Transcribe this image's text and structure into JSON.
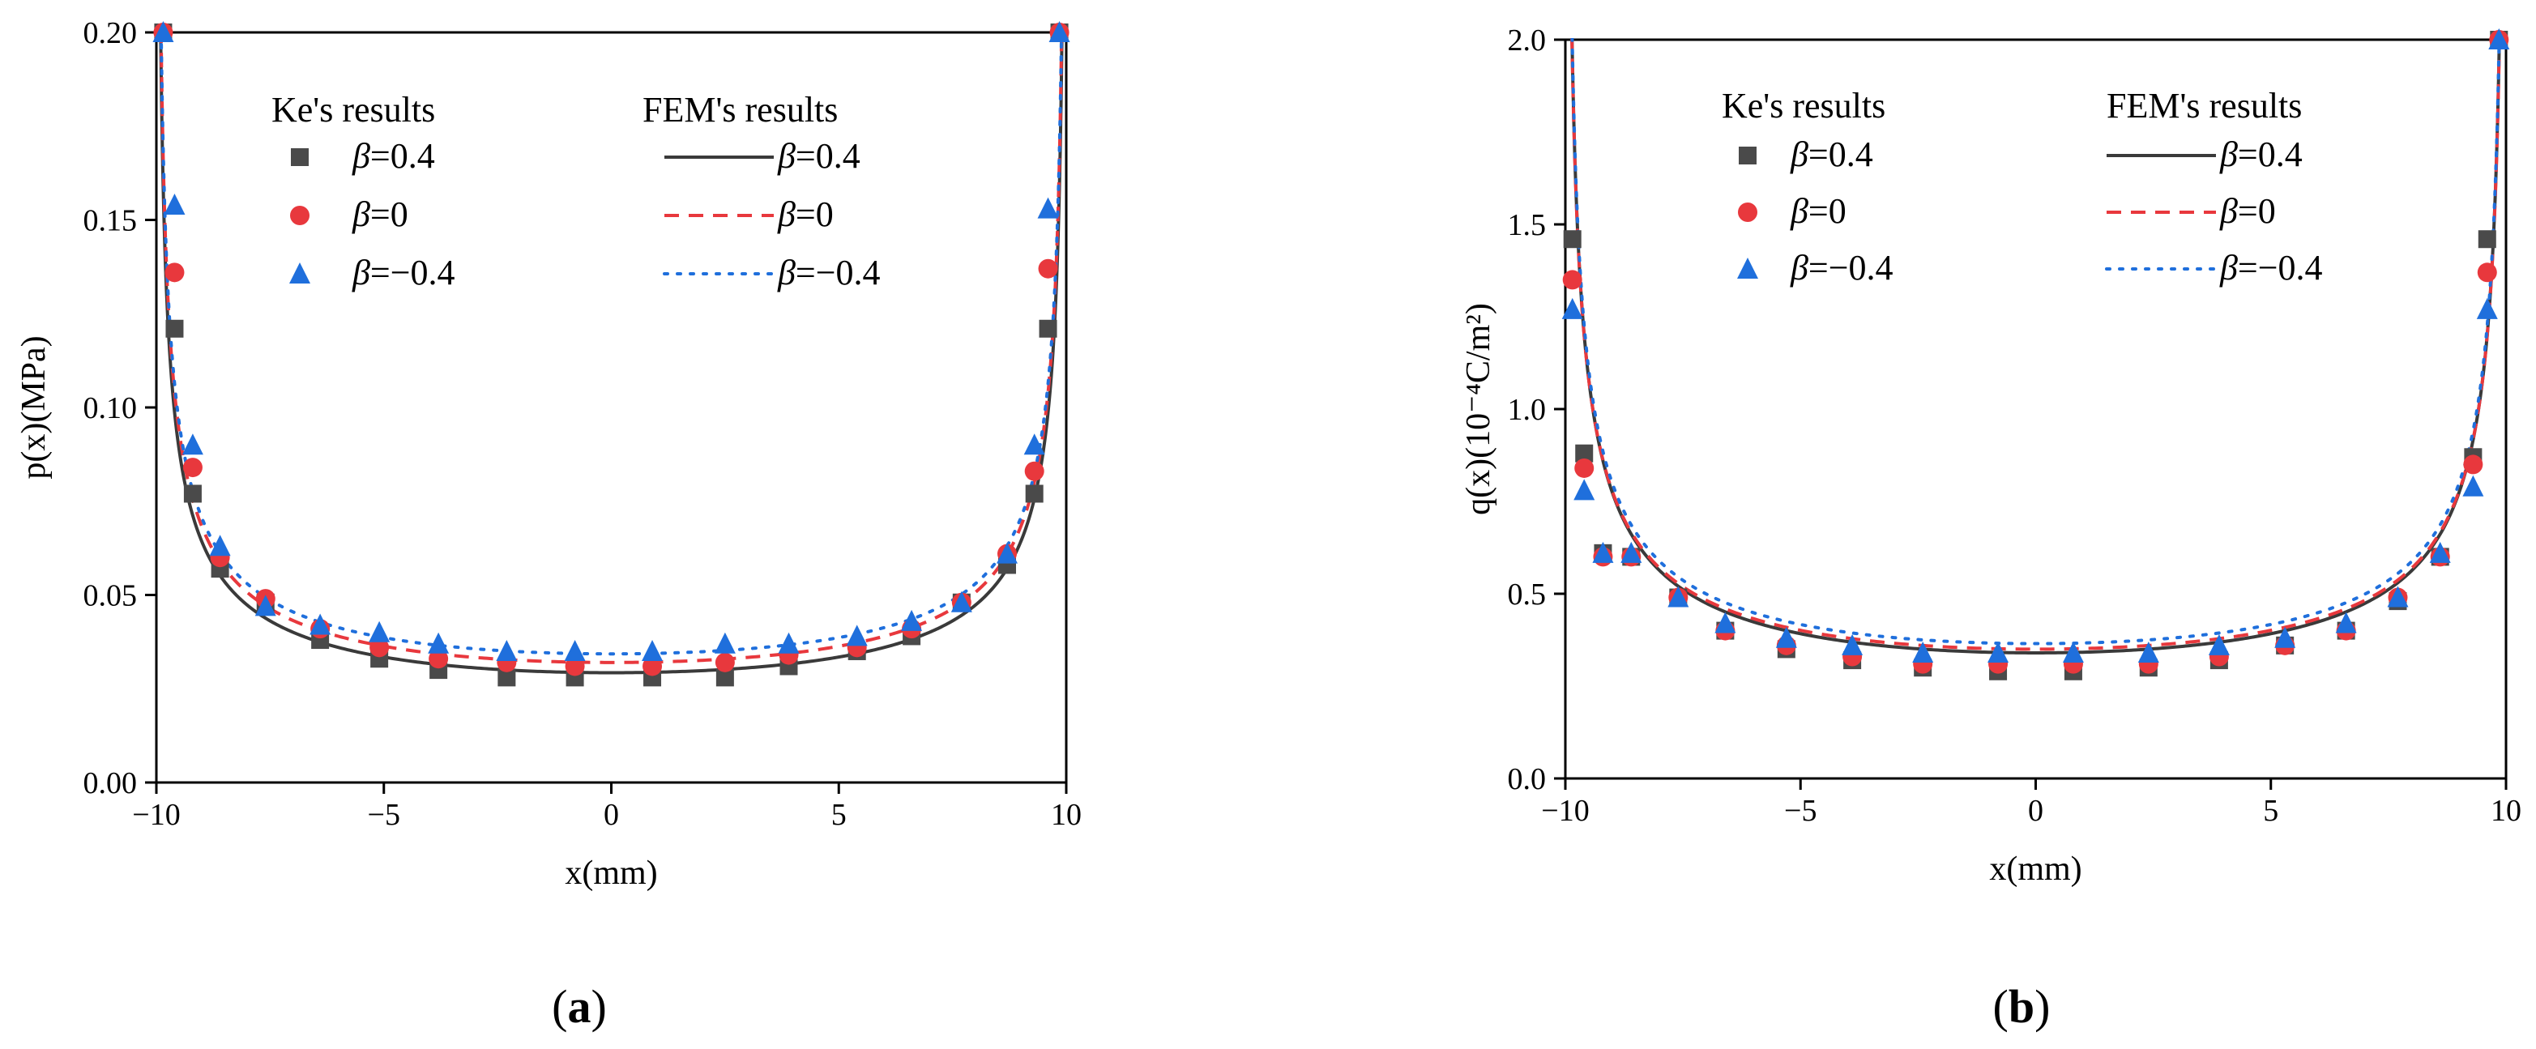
{
  "chart_data": [
    {
      "type": "scatter+line",
      "panel_label": "a",
      "xlabel": "x(mm)",
      "ylabel": "p(x)(MPa)",
      "xlim": [
        -10,
        10
      ],
      "ylim": [
        0,
        0.2
      ],
      "xticks": [
        -10,
        -5,
        0,
        5,
        10
      ],
      "xtick_labels": [
        "−10",
        "−5",
        "0",
        "5",
        "10"
      ],
      "yticks": [
        0,
        0.05,
        0.1,
        0.15,
        0.2
      ],
      "ytick_labels": [
        "0.00",
        "0.05",
        "0.10",
        "0.15",
        "0.20"
      ],
      "legend": {
        "markers_title": "Ke's results",
        "lines_title": "FEM's results",
        "entries": [
          {
            "symbol": "β",
            "text": "=0.4"
          },
          {
            "symbol": "β",
            "text": "=0"
          },
          {
            "symbol": "β",
            "text": "=−0.4"
          }
        ]
      },
      "curve_model": {
        "form": "base + amp / sqrt(1 - (x/10)^2)"
      },
      "series": [
        {
          "name": "β=0.4",
          "marker_color": "#4a4a4a",
          "marker": "square",
          "line_style": "solid",
          "line_color": "#3a3a3a",
          "line": {
            "base": 0.00227,
            "amp": 0.027
          },
          "points": {
            "x": [
              -9.85,
              -9.6,
              -9.2,
              -8.6,
              -7.6,
              -6.4,
              -5.1,
              -3.8,
              -2.3,
              -0.8,
              0.9,
              2.5,
              3.9,
              5.4,
              6.6,
              7.7,
              8.7,
              9.3,
              9.6,
              9.85
            ],
            "y": [
              0.2,
              0.121,
              0.077,
              0.057,
              0.048,
              0.038,
              0.033,
              0.03,
              0.028,
              0.028,
              0.028,
              0.028,
              0.031,
              0.035,
              0.039,
              0.048,
              0.058,
              0.077,
              0.121,
              0.2
            ]
          }
        },
        {
          "name": "β=0",
          "marker_color": "#e8383d",
          "marker": "circle",
          "line_style": "dashed",
          "line_color": "#e8383d",
          "line": {
            "base": 0.004,
            "amp": 0.028
          },
          "points": {
            "x": [
              -9.85,
              -9.6,
              -9.2,
              -8.6,
              -7.6,
              -6.4,
              -5.1,
              -3.8,
              -2.3,
              -0.8,
              0.9,
              2.5,
              3.9,
              5.4,
              6.6,
              7.7,
              8.7,
              9.3,
              9.6,
              9.85
            ],
            "y": [
              0.2,
              0.136,
              0.084,
              0.06,
              0.049,
              0.041,
              0.036,
              0.033,
              0.032,
              0.031,
              0.031,
              0.032,
              0.034,
              0.036,
              0.041,
              0.048,
              0.061,
              0.083,
              0.137,
              0.2
            ]
          }
        },
        {
          "name": "β=−0.4",
          "marker_color": "#1f6fdc",
          "marker": "triangle",
          "line_style": "dotted",
          "line_color": "#1f6fdc",
          "line": {
            "base": 0.0063,
            "amp": 0.028
          },
          "points": {
            "x": [
              -9.85,
              -9.6,
              -9.2,
              -8.6,
              -7.6,
              -6.4,
              -5.1,
              -3.8,
              -2.3,
              -0.8,
              0.9,
              2.5,
              3.9,
              5.4,
              6.6,
              7.7,
              8.7,
              9.3,
              9.6,
              9.85
            ],
            "y": [
              0.2,
              0.154,
              0.09,
              0.063,
              0.047,
              0.042,
              0.04,
              0.037,
              0.035,
              0.035,
              0.035,
              0.037,
              0.037,
              0.039,
              0.043,
              0.048,
              0.061,
              0.09,
              0.153,
              0.2
            ]
          }
        }
      ]
    },
    {
      "type": "scatter+line",
      "panel_label": "b",
      "xlabel": "x(mm)",
      "ylabel": "q(x)(10⁻⁴C/m²)",
      "xlim": [
        -10,
        10
      ],
      "ylim": [
        0,
        2.0
      ],
      "xticks": [
        -10,
        -5,
        0,
        5,
        10
      ],
      "xtick_labels": [
        "−10",
        "−5",
        "0",
        "5",
        "10"
      ],
      "yticks": [
        0,
        0.5,
        1.0,
        1.5,
        2.0
      ],
      "ytick_labels": [
        "0.0",
        "0.5",
        "1.0",
        "1.5",
        "2.0"
      ],
      "legend": {
        "markers_title": "Ke's results",
        "lines_title": "FEM's results",
        "entries": [
          {
            "symbol": "β",
            "text": "=0.4"
          },
          {
            "symbol": "β",
            "text": "=0"
          },
          {
            "symbol": "β",
            "text": "=−0.4"
          }
        ]
      },
      "curve_model": {
        "form": "base + amp / sqrt(1 - (x/10)^2)"
      },
      "series": [
        {
          "name": "β=0.4",
          "marker_color": "#4a4a4a",
          "marker": "square",
          "line_style": "solid",
          "line_color": "#3a3a3a",
          "line": {
            "base": 0.005,
            "amp": 0.335
          },
          "points": {
            "x": [
              -9.85,
              -9.6,
              -9.2,
              -8.6,
              -7.6,
              -6.6,
              -5.3,
              -3.9,
              -2.4,
              -0.8,
              0.8,
              2.4,
              3.9,
              5.3,
              6.6,
              7.7,
              8.6,
              9.3,
              9.6,
              9.85
            ],
            "y": [
              1.46,
              0.88,
              0.61,
              0.6,
              0.49,
              0.4,
              0.35,
              0.32,
              0.3,
              0.29,
              0.29,
              0.3,
              0.32,
              0.36,
              0.4,
              0.48,
              0.6,
              0.87,
              1.46,
              2.0
            ]
          }
        },
        {
          "name": "β=0",
          "marker_color": "#e8383d",
          "marker": "circle",
          "line_style": "dashed",
          "line_color": "#e8383d",
          "line": {
            "base": 0.02,
            "amp": 0.33
          },
          "points": {
            "x": [
              -9.85,
              -9.6,
              -9.2,
              -8.6,
              -7.6,
              -6.6,
              -5.3,
              -3.9,
              -2.4,
              -0.8,
              0.8,
              2.4,
              3.9,
              5.3,
              6.6,
              7.7,
              8.6,
              9.3,
              9.6,
              9.85
            ],
            "y": [
              1.35,
              0.84,
              0.6,
              0.6,
              0.49,
              0.4,
              0.36,
              0.33,
              0.31,
              0.31,
              0.31,
              0.31,
              0.33,
              0.36,
              0.4,
              0.49,
              0.6,
              0.85,
              1.37,
              2.0
            ]
          }
        },
        {
          "name": "β=−0.4",
          "marker_color": "#1f6fdc",
          "marker": "triangle",
          "line_style": "dotted",
          "line_color": "#1f6fdc",
          "line": {
            "base": 0.03,
            "amp": 0.335
          },
          "points": {
            "x": [
              -9.85,
              -9.6,
              -9.2,
              -8.6,
              -7.6,
              -6.6,
              -5.3,
              -3.9,
              -2.4,
              -0.8,
              0.8,
              2.4,
              3.9,
              5.3,
              6.6,
              7.7,
              8.6,
              9.3,
              9.6,
              9.85
            ],
            "y": [
              1.27,
              0.78,
              0.61,
              0.61,
              0.49,
              0.42,
              0.38,
              0.36,
              0.34,
              0.34,
              0.34,
              0.34,
              0.36,
              0.38,
              0.42,
              0.49,
              0.61,
              0.79,
              1.27,
              2.0
            ]
          }
        }
      ]
    }
  ]
}
